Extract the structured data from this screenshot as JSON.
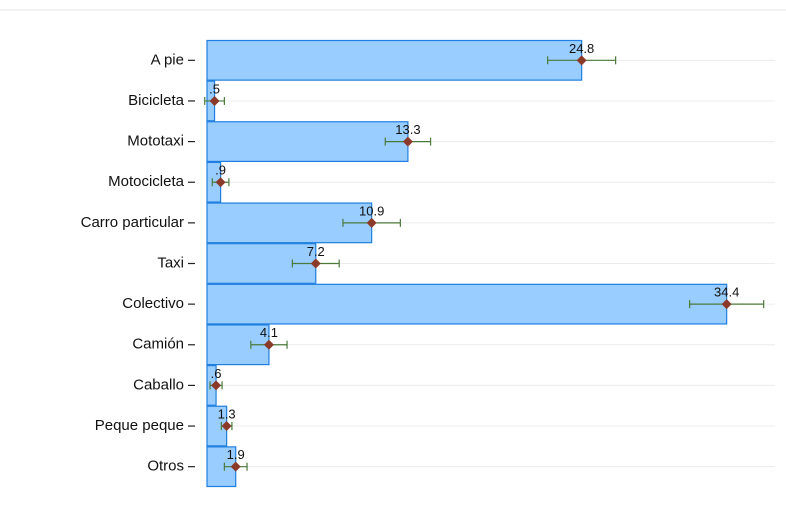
{
  "chart_data": {
    "type": "bar",
    "orientation": "horizontal",
    "categories": [
      "A pie",
      "Bicicleta",
      "Mototaxi",
      "Motocicleta",
      "Carro particular",
      "Taxi",
      "Colectivo",
      "Camión",
      "Caballo",
      "Peque peque",
      "Otros"
    ],
    "values": [
      24.8,
      0.5,
      13.3,
      0.9,
      10.9,
      7.2,
      34.4,
      4.1,
      0.6,
      1.3,
      1.9
    ],
    "value_labels": [
      "24.8",
      ".5",
      "13.3",
      ".9",
      "10.9",
      "7.2",
      "34.4",
      "4.1",
      ".6",
      "1.3",
      "1.9"
    ],
    "errors": [
      2.25,
      0.65,
      1.5,
      0.55,
      1.9,
      1.55,
      2.45,
      1.2,
      0.4,
      0.35,
      0.75
    ],
    "color": "#99ccff",
    "edge_color": "#1f7fe0",
    "point_color": "#8b3a2a",
    "error_color": "#4a7a3a",
    "xlim": [
      0,
      37.6
    ],
    "grid": true
  }
}
